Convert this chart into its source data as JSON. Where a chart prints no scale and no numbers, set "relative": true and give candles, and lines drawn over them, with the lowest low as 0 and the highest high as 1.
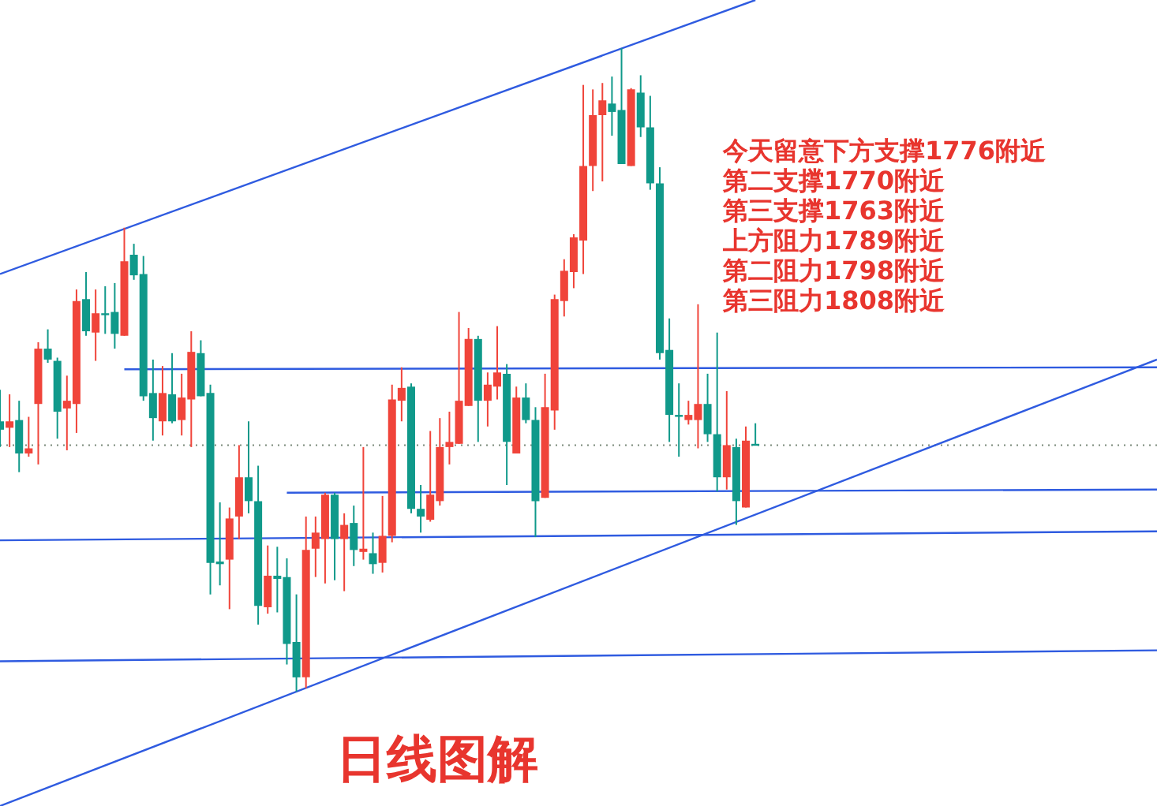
{
  "chart_data": {
    "type": "candlestick",
    "relative": true,
    "title": "日线图解",
    "annotations": [
      "今天留意下方支撑1776附近",
      "第二支撑1770附近",
      "第三支撑1763附近",
      "上方阻力1789附近",
      "第二阻力1798附近",
      "第三阻力1808附近"
    ],
    "categories": [
      null,
      null,
      null,
      null,
      null,
      null,
      null,
      null,
      null,
      null,
      null,
      null,
      null,
      null,
      null,
      null,
      null,
      null,
      null,
      null,
      null,
      null,
      null,
      null,
      null,
      null,
      null,
      null,
      null,
      null,
      null,
      null,
      null,
      null,
      null,
      null,
      null,
      null,
      null,
      null,
      null,
      null,
      null,
      null,
      null,
      null,
      null,
      null,
      null,
      null,
      null,
      null,
      null,
      null,
      null,
      null,
      null,
      null,
      null,
      null,
      null,
      null,
      null,
      null,
      null,
      null,
      null,
      null,
      null,
      null,
      null,
      null,
      null,
      null,
      null,
      null,
      null,
      null,
      null,
      null,
      null,
      null,
      null,
      null,
      null,
      null,
      null,
      null,
      null,
      null,
      null,
      null,
      null,
      null,
      null,
      null,
      null,
      null,
      null,
      null,
      null,
      null,
      null,
      null,
      null,
      null,
      null,
      null,
      null,
      null,
      null,
      null,
      null,
      null,
      null,
      null,
      null,
      null,
      null,
      null,
      null,
      null
    ],
    "ohlc": [
      [
        0.42,
        0.469,
        0.38,
        0.407
      ],
      [
        0.41,
        0.462,
        0.38,
        0.42
      ],
      [
        0.422,
        0.452,
        0.341,
        0.37
      ],
      [
        0.37,
        0.427,
        0.365,
        0.378
      ],
      [
        0.447,
        0.543,
        0.353,
        0.533
      ],
      [
        0.533,
        0.563,
        0.511,
        0.516
      ],
      [
        0.514,
        0.519,
        0.393,
        0.435
      ],
      [
        0.44,
        0.491,
        0.375,
        0.452
      ],
      [
        0.447,
        0.625,
        0.402,
        0.607
      ],
      [
        0.61,
        0.652,
        0.553,
        0.56
      ],
      [
        0.558,
        0.625,
        0.514,
        0.588
      ],
      [
        0.588,
        0.63,
        0.556,
        0.586
      ],
      [
        0.59,
        0.635,
        0.533,
        0.556
      ],
      [
        0.553,
        0.721,
        0.553,
        0.669
      ],
      [
        0.679,
        0.696,
        0.64,
        0.647
      ],
      [
        0.649,
        0.677,
        0.452,
        0.459
      ],
      [
        0.464,
        0.516,
        0.39,
        0.425
      ],
      [
        0.42,
        0.506,
        0.398,
        0.464
      ],
      [
        0.462,
        0.526,
        0.417,
        0.42
      ],
      [
        0.422,
        0.494,
        0.398,
        0.457
      ],
      [
        0.454,
        0.56,
        0.38,
        0.528
      ],
      [
        0.526,
        0.546,
        0.459,
        0.459
      ],
      [
        0.464,
        0.477,
        0.151,
        0.2
      ],
      [
        0.202,
        0.294,
        0.165,
        0.198
      ],
      [
        0.205,
        0.286,
        0.128,
        0.269
      ],
      [
        0.272,
        0.383,
        0.237,
        0.333
      ],
      [
        0.333,
        0.42,
        0.277,
        0.296
      ],
      [
        0.296,
        0.351,
        0.104,
        0.133
      ],
      [
        0.131,
        0.227,
        0.121,
        0.18
      ],
      [
        0.18,
        0.225,
        0.123,
        0.175
      ],
      [
        0.178,
        0.207,
        0.042,
        0.074
      ],
      [
        0.077,
        0.151,
        0,
        0.022
      ],
      [
        0.022,
        0.272,
        0.005,
        0.22
      ],
      [
        0.222,
        0.272,
        0.178,
        0.247
      ],
      [
        0.237,
        0.309,
        0.168,
        0.306
      ],
      [
        0.306,
        0.309,
        0.173,
        0.237
      ],
      [
        0.237,
        0.277,
        0.156,
        0.259
      ],
      [
        0.262,
        0.289,
        0.195,
        0.22
      ],
      [
        0.217,
        0.38,
        0.205,
        0.222
      ],
      [
        0.215,
        0.247,
        0.183,
        0.198
      ],
      [
        0.2,
        0.304,
        0.185,
        0.242
      ],
      [
        0.242,
        0.477,
        0.232,
        0.454
      ],
      [
        0.452,
        0.504,
        0.42,
        0.472
      ],
      [
        0.474,
        0.479,
        0.277,
        0.284
      ],
      [
        0.284,
        0.321,
        0.247,
        0.272
      ],
      [
        0.267,
        0.405,
        0.264,
        0.306
      ],
      [
        0.296,
        0.425,
        0.289,
        0.38
      ],
      [
        0.38,
        0.435,
        0.353,
        0.388
      ],
      [
        0.385,
        0.59,
        0.385,
        0.452
      ],
      [
        0.444,
        0.565,
        0.444,
        0.548
      ],
      [
        0.548,
        0.553,
        0.388,
        0.452
      ],
      [
        0.452,
        0.496,
        0.412,
        0.477
      ],
      [
        0.474,
        0.568,
        0.454,
        0.496
      ],
      [
        0.494,
        0.509,
        0.321,
        0.388
      ],
      [
        0.37,
        0.474,
        0.37,
        0.457
      ],
      [
        0.457,
        0.479,
        0.417,
        0.422
      ],
      [
        0.422,
        0.442,
        0.24,
        0.296
      ],
      [
        0.301,
        0.494,
        0.301,
        0.442
      ],
      [
        0.437,
        0.617,
        0.407,
        0.61
      ],
      [
        0.607,
        0.672,
        0.583,
        0.654
      ],
      [
        0.652,
        0.711,
        0.627,
        0.706
      ],
      [
        0.701,
        0.943,
        0.649,
        0.817
      ],
      [
        0.817,
        0.936,
        0.778,
        0.896
      ],
      [
        0.896,
        0.946,
        0.793,
        0.919
      ],
      [
        0.914,
        0.956,
        0.864,
        0.901
      ],
      [
        0.904,
        1,
        0.82,
        0.82
      ],
      [
        0.817,
        0.938,
        0.817,
        0.936
      ],
      [
        0.931,
        0.958,
        0.862,
        0.877
      ],
      [
        0.877,
        0.926,
        0.78,
        0.79
      ],
      [
        0.79,
        0.815,
        0.516,
        0.526
      ],
      [
        0.531,
        0.58,
        0.388,
        0.43
      ],
      [
        0.43,
        0.479,
        0.365,
        0.427
      ],
      [
        0.422,
        0.452,
        0.415,
        0.43
      ],
      [
        0.422,
        0.602,
        0.378,
        0.447
      ],
      [
        0.447,
        0.494,
        0.388,
        0.4
      ],
      [
        0.4,
        0.558,
        0.311,
        0.333
      ],
      [
        0.333,
        0.467,
        0.314,
        0.383
      ],
      [
        0.38,
        0.393,
        0.259,
        0.296
      ],
      [
        0.286,
        0.412,
        0.286,
        0.39
      ],
      [
        0.385,
        0.417,
        0.383,
        0.384
      ],
      null,
      null,
      null,
      null,
      null,
      null,
      null,
      null,
      null,
      null,
      null,
      null,
      null,
      null,
      null,
      null,
      null,
      null,
      null,
      null,
      null,
      null,
      null,
      null,
      null,
      null,
      null,
      null,
      null,
      null,
      null,
      null,
      null,
      null,
      null,
      null,
      null,
      null,
      null,
      null,
      null,
      null
    ],
    "colors": [
      "#10998a",
      "#f0443a",
      "#10998a",
      "#f0443a",
      "#f0443a",
      "#10998a",
      "#10998a",
      "#f0443a",
      "#f0443a",
      "#10998a",
      "#f0443a",
      "#10998a",
      "#10998a",
      "#f0443a",
      "#10998a",
      "#10998a",
      "#10998a",
      "#f0443a",
      "#10998a",
      "#f0443a",
      "#f0443a",
      "#10998a",
      "#10998a",
      "#10998a",
      "#f0443a",
      "#f0443a",
      "#10998a",
      "#10998a",
      "#f0443a",
      "#10998a",
      "#10998a",
      "#10998a",
      "#f0443a",
      "#f0443a",
      "#f0443a",
      "#10998a",
      "#f0443a",
      "#10998a",
      "#f0443a",
      "#10998a",
      "#f0443a",
      "#f0443a",
      "#f0443a",
      "#10998a",
      "#10998a",
      "#f0443a",
      "#f0443a",
      "#f0443a",
      "#f0443a",
      "#f0443a",
      "#10998a",
      "#f0443a",
      "#f0443a",
      "#10998a",
      "#f0443a",
      "#10998a",
      "#10998a",
      "#f0443a",
      "#f0443a",
      "#f0443a",
      "#f0443a",
      "#f0443a",
      "#f0443a",
      "#f0443a",
      "#10998a",
      "#10998a",
      "#f0443a",
      "#10998a",
      "#10998a",
      "#10998a",
      "#10998a",
      "#10998a",
      "#f0443a",
      "#f0443a",
      "#10998a",
      "#10998a",
      "#f0443a",
      "#10998a",
      "#f0443a",
      "#10998a",
      null,
      null,
      null,
      null,
      null,
      null,
      null,
      null,
      null,
      null,
      null,
      null,
      null,
      null,
      null,
      null,
      null,
      null,
      null,
      null,
      null,
      null,
      null,
      null,
      null,
      null,
      null,
      null,
      null,
      null,
      null,
      null,
      null,
      null,
      null,
      null,
      null,
      null,
      null,
      null,
      null,
      null
    ],
    "series": [
      {
        "type": "line",
        "color": "#2f5be0",
        "values": [
          0.649,
          null,
          null,
          null,
          null,
          null,
          null,
          null,
          null,
          null,
          null,
          null,
          null,
          null,
          null,
          null,
          null,
          null,
          null,
          null,
          null,
          null,
          null,
          null,
          null,
          null,
          null,
          null,
          null,
          null,
          null,
          null,
          null,
          null,
          null,
          null,
          null,
          null,
          null,
          null,
          null,
          null,
          null,
          null,
          null,
          null,
          null,
          null,
          null,
          null,
          null,
          null,
          null,
          null,
          null,
          null,
          null,
          null,
          null,
          null,
          null,
          null,
          null,
          null,
          null,
          null,
          null,
          null,
          null,
          null,
          null,
          null,
          null,
          null,
          null,
          null,
          null,
          null,
          null,
          1.075,
          null,
          null,
          null,
          null,
          null,
          null,
          null,
          null,
          null,
          null,
          null,
          null,
          null,
          null,
          null,
          null,
          null,
          null,
          null,
          null,
          null,
          null,
          null,
          null,
          null,
          null,
          null,
          null,
          null,
          null,
          null,
          null,
          null,
          null,
          null,
          null,
          null,
          null,
          null,
          null,
          null,
          null
        ]
      },
      {
        "type": "line",
        "color": "#2f5be0",
        "values": [
          -0.178,
          null,
          null,
          null,
          null,
          null,
          null,
          null,
          null,
          null,
          null,
          null,
          null,
          null,
          null,
          null,
          null,
          null,
          null,
          null,
          null,
          null,
          null,
          null,
          null,
          null,
          null,
          null,
          null,
          null,
          null,
          null,
          null,
          null,
          null,
          null,
          null,
          null,
          null,
          null,
          null,
          null,
          null,
          null,
          null,
          null,
          null,
          null,
          null,
          null,
          null,
          null,
          null,
          null,
          null,
          null,
          null,
          null,
          null,
          null,
          null,
          null,
          null,
          null,
          null,
          null,
          null,
          null,
          null,
          null,
          null,
          null,
          null,
          null,
          null,
          null,
          null,
          null,
          null,
          null,
          null,
          null,
          null,
          null,
          null,
          null,
          null,
          null,
          null,
          null,
          null,
          null,
          null,
          null,
          null,
          null,
          null,
          null,
          null,
          null,
          null,
          null,
          null,
          null,
          null,
          null,
          null,
          null,
          null,
          null,
          null,
          null,
          null,
          null,
          null,
          null,
          null,
          null,
          null,
          null,
          null,
          0.516
        ]
      },
      {
        "type": "line",
        "color": "#2f5be0",
        "values": [
          null,
          null,
          null,
          null,
          null,
          null,
          null,
          null,
          null,
          null,
          null,
          null,
          null,
          0.501,
          null,
          null,
          null,
          null,
          null,
          null,
          null,
          null,
          null,
          null,
          null,
          null,
          null,
          null,
          null,
          null,
          null,
          null,
          null,
          null,
          null,
          null,
          null,
          null,
          null,
          null,
          null,
          null,
          null,
          null,
          null,
          null,
          null,
          null,
          null,
          null,
          null,
          null,
          null,
          null,
          null,
          null,
          null,
          null,
          null,
          null,
          null,
          null,
          null,
          null,
          null,
          null,
          null,
          null,
          null,
          null,
          null,
          null,
          null,
          null,
          null,
          null,
          null,
          null,
          null,
          null,
          null,
          null,
          null,
          null,
          null,
          null,
          null,
          null,
          null,
          null,
          null,
          null,
          null,
          null,
          null,
          null,
          null,
          null,
          null,
          null,
          null,
          null,
          null,
          null,
          null,
          null,
          null,
          null,
          null,
          null,
          null,
          null,
          null,
          null,
          null,
          null,
          null,
          null,
          null,
          null,
          null,
          0.504
        ]
      },
      {
        "type": "line",
        "color": "#2f5be0",
        "values": [
          null,
          null,
          null,
          null,
          null,
          null,
          null,
          null,
          null,
          null,
          null,
          null,
          null,
          null,
          null,
          null,
          null,
          null,
          null,
          null,
          null,
          null,
          null,
          null,
          null,
          null,
          null,
          null,
          null,
          null,
          0.309,
          null,
          null,
          null,
          null,
          null,
          null,
          null,
          null,
          null,
          null,
          null,
          null,
          null,
          null,
          null,
          null,
          null,
          null,
          null,
          null,
          null,
          null,
          null,
          null,
          null,
          null,
          null,
          null,
          null,
          null,
          null,
          null,
          null,
          null,
          null,
          null,
          null,
          null,
          null,
          null,
          null,
          null,
          null,
          null,
          null,
          null,
          null,
          null,
          null,
          null,
          null,
          null,
          null,
          null,
          null,
          null,
          null,
          null,
          null,
          null,
          null,
          null,
          null,
          null,
          null,
          null,
          null,
          null,
          null,
          null,
          null,
          null,
          null,
          null,
          null,
          null,
          null,
          null,
          null,
          null,
          null,
          null,
          null,
          null,
          null,
          null,
          null,
          null,
          null,
          null,
          0.314
        ]
      },
      {
        "type": "line",
        "color": "#2f5be0",
        "values": [
          0.235,
          null,
          null,
          null,
          null,
          null,
          null,
          null,
          null,
          null,
          null,
          null,
          null,
          null,
          null,
          null,
          null,
          null,
          null,
          null,
          null,
          null,
          null,
          null,
          null,
          null,
          null,
          null,
          null,
          null,
          null,
          null,
          null,
          null,
          null,
          null,
          null,
          null,
          null,
          null,
          null,
          null,
          null,
          null,
          null,
          null,
          null,
          null,
          null,
          null,
          null,
          null,
          null,
          null,
          null,
          null,
          null,
          null,
          null,
          null,
          null,
          null,
          null,
          null,
          null,
          null,
          null,
          null,
          null,
          null,
          null,
          null,
          null,
          null,
          null,
          null,
          null,
          null,
          null,
          null,
          null,
          null,
          null,
          null,
          null,
          null,
          null,
          null,
          null,
          null,
          null,
          null,
          null,
          null,
          null,
          null,
          null,
          null,
          null,
          null,
          null,
          null,
          null,
          null,
          null,
          null,
          null,
          null,
          null,
          null,
          null,
          null,
          null,
          null,
          null,
          null,
          null,
          null,
          null,
          null,
          null,
          0.249
        ]
      },
      {
        "type": "line",
        "color": "#2f5be0",
        "values": [
          0.047,
          null,
          null,
          null,
          null,
          null,
          null,
          null,
          null,
          null,
          null,
          null,
          null,
          null,
          null,
          null,
          null,
          null,
          null,
          null,
          null,
          null,
          null,
          null,
          null,
          null,
          null,
          null,
          null,
          null,
          null,
          null,
          null,
          null,
          null,
          null,
          null,
          null,
          null,
          null,
          null,
          null,
          null,
          null,
          null,
          null,
          null,
          null,
          null,
          null,
          null,
          null,
          null,
          null,
          null,
          null,
          null,
          null,
          null,
          null,
          null,
          null,
          null,
          null,
          null,
          null,
          null,
          null,
          null,
          null,
          null,
          null,
          null,
          null,
          null,
          null,
          null,
          null,
          null,
          null,
          null,
          null,
          null,
          null,
          null,
          null,
          null,
          null,
          null,
          null,
          null,
          null,
          null,
          null,
          null,
          null,
          null,
          null,
          null,
          null,
          null,
          null,
          null,
          null,
          null,
          null,
          null,
          null,
          null,
          null,
          null,
          null,
          null,
          null,
          null,
          null,
          null,
          null,
          null,
          null,
          null,
          0.064
        ]
      }
    ],
    "ref_lines": [
      {
        "axis": "y",
        "value": 0.383,
        "color": "#7a8a7a",
        "line_style": "dotted"
      }
    ]
  }
}
